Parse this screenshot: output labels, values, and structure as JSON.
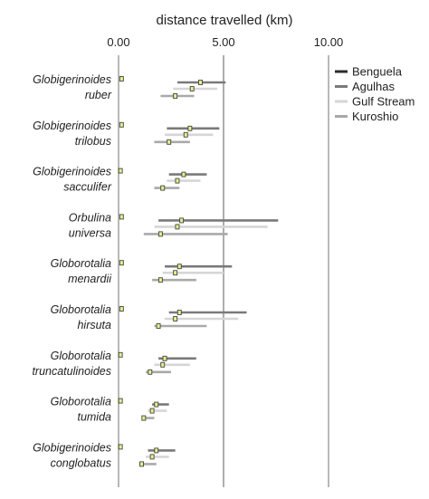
{
  "chart_data": {
    "type": "range",
    "xlabel": "distance travelled (km)",
    "xlim": [
      0,
      10
    ],
    "xticks": [
      "0.00",
      "5.00",
      "10.00"
    ],
    "reference_line": 5,
    "legend": {
      "position": "top-right",
      "entries": [
        "Benguela",
        "Agulhas",
        "Gulf Stream",
        "Kuroshio"
      ]
    },
    "colors": {
      "Benguela": "#2b2b2b",
      "Agulhas": "#7a7a7a",
      "Gulf Stream": "#d6d6d6",
      "Kuroshio": "#a9a9a9",
      "marker_fill": "#e8ef8a",
      "marker_stroke": "#444444",
      "gridline": "#9a9a9a"
    },
    "species": [
      {
        "line1": "Globigerinoides",
        "line2": "ruber",
        "benguela_point": 0.1,
        "currents": [
          {
            "name": "Agulhas",
            "min": 2.8,
            "max": 5.1,
            "point": 3.9
          },
          {
            "name": "Gulf Stream",
            "min": 2.6,
            "max": 4.7,
            "point": 3.5
          },
          {
            "name": "Kuroshio",
            "min": 2.0,
            "max": 3.6,
            "point": 2.7
          }
        ]
      },
      {
        "line1": "Globigerinoides",
        "line2": "trilobus",
        "benguela_point": 0.1,
        "currents": [
          {
            "name": "Agulhas",
            "min": 2.3,
            "max": 4.8,
            "point": 3.4
          },
          {
            "name": "Gulf Stream",
            "min": 2.2,
            "max": 4.5,
            "point": 3.2
          },
          {
            "name": "Kuroshio",
            "min": 1.7,
            "max": 3.4,
            "point": 2.4
          }
        ]
      },
      {
        "line1": "Globigerinoides",
        "line2": "sacculifer",
        "benguela_point": 0.05,
        "currents": [
          {
            "name": "Agulhas",
            "min": 2.4,
            "max": 4.2,
            "point": 3.1
          },
          {
            "name": "Gulf Stream",
            "min": 2.3,
            "max": 3.9,
            "point": 2.8
          },
          {
            "name": "Kuroshio",
            "min": 1.7,
            "max": 2.9,
            "point": 2.1
          }
        ]
      },
      {
        "line1": "Orbulina",
        "line2": "universa",
        "benguela_point": 0.1,
        "currents": [
          {
            "name": "Agulhas",
            "min": 1.9,
            "max": 7.6,
            "point": 3.0
          },
          {
            "name": "Gulf Stream",
            "min": 1.7,
            "max": 7.1,
            "point": 2.8
          },
          {
            "name": "Kuroshio",
            "min": 1.2,
            "max": 5.2,
            "point": 2.0
          }
        ]
      },
      {
        "line1": "Globorotalia",
        "line2": "menardii",
        "benguela_point": 0.1,
        "currents": [
          {
            "name": "Agulhas",
            "min": 2.2,
            "max": 5.4,
            "point": 2.9
          },
          {
            "name": "Gulf Stream",
            "min": 2.1,
            "max": 5.0,
            "point": 2.7
          },
          {
            "name": "Kuroshio",
            "min": 1.6,
            "max": 3.7,
            "point": 2.0
          }
        ]
      },
      {
        "line1": "Globorotalia",
        "line2": "hirsuta",
        "benguela_point": 0.1,
        "currents": [
          {
            "name": "Agulhas",
            "min": 2.4,
            "max": 6.1,
            "point": 2.9
          },
          {
            "name": "Gulf Stream",
            "min": 2.2,
            "max": 5.7,
            "point": 2.7
          },
          {
            "name": "Kuroshio",
            "min": 1.7,
            "max": 4.2,
            "point": 1.9
          }
        ]
      },
      {
        "line1": "Globorotalia",
        "line2": "truncatulinoides",
        "benguela_point": 0.05,
        "currents": [
          {
            "name": "Agulhas",
            "min": 1.9,
            "max": 3.7,
            "point": 2.2
          },
          {
            "name": "Gulf Stream",
            "min": 1.7,
            "max": 3.4,
            "point": 2.1
          },
          {
            "name": "Kuroshio",
            "min": 1.3,
            "max": 2.5,
            "point": 1.5
          }
        ]
      },
      {
        "line1": "Globorotalia",
        "line2": "tumida",
        "benguela_point": 0.05,
        "currents": [
          {
            "name": "Agulhas",
            "min": 1.6,
            "max": 2.4,
            "point": 1.8
          },
          {
            "name": "Gulf Stream",
            "min": 1.4,
            "max": 2.3,
            "point": 1.6
          },
          {
            "name": "Kuroshio",
            "min": 1.1,
            "max": 1.7,
            "point": 1.2
          }
        ]
      },
      {
        "line1": "Globigerinoides",
        "line2": "conglobatus",
        "benguela_point": 0.05,
        "currents": [
          {
            "name": "Agulhas",
            "min": 1.4,
            "max": 2.7,
            "point": 1.8
          },
          {
            "name": "Gulf Stream",
            "min": 1.3,
            "max": 2.4,
            "point": 1.6
          },
          {
            "name": "Kuroshio",
            "min": 1.0,
            "max": 1.8,
            "point": 1.1
          }
        ]
      }
    ]
  }
}
